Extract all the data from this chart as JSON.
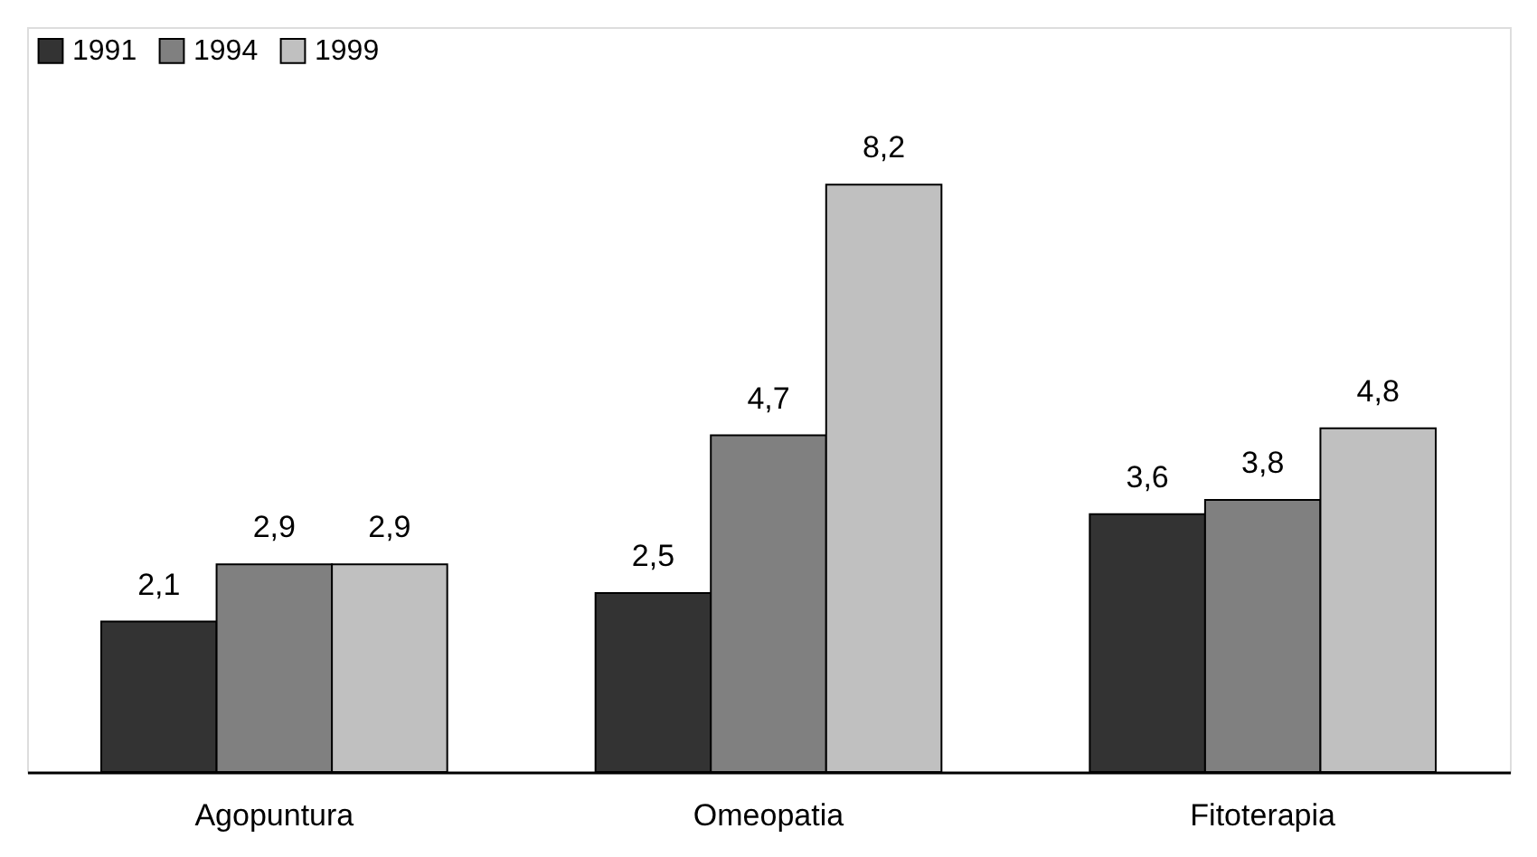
{
  "chart_data": {
    "type": "bar",
    "categories": [
      "Agopuntura",
      "Omeopatia",
      "Fitoterapia"
    ],
    "series": [
      {
        "name": "1991",
        "color": "#333333",
        "values": [
          2.1,
          2.5,
          3.6
        ],
        "value_labels": [
          "2,1",
          "2,5",
          "3,6"
        ]
      },
      {
        "name": "1994",
        "color": "#808080",
        "values": [
          2.9,
          4.7,
          3.8
        ],
        "value_labels": [
          "2,9",
          "4,7",
          "3,8"
        ]
      },
      {
        "name": "1999",
        "color": "#c0c0c0",
        "values": [
          2.9,
          8.2,
          4.8
        ],
        "value_labels": [
          "2,9",
          "8,2",
          "4,8"
        ]
      }
    ],
    "ylim": [
      0,
      10.4
    ],
    "grid": false,
    "legend": "top left"
  }
}
